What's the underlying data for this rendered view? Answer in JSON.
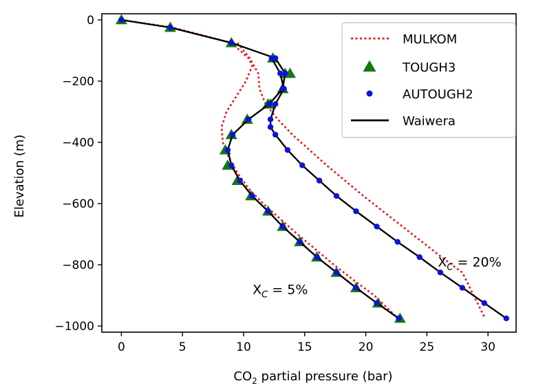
{
  "chart_data": {
    "type": "line",
    "xlabel": "CO",
    "xlabel_subscript": "2",
    "xlabel_rest": " partial pressure (bar)",
    "ylabel": "Elevation (m)",
    "xlim": [
      -1.6,
      32.3
    ],
    "ylim": [
      -1020,
      20
    ],
    "x_ticks": [
      0,
      5,
      10,
      15,
      20,
      25,
      30
    ],
    "x_tick_labels": [
      "0",
      "5",
      "10",
      "15",
      "20",
      "25",
      "30"
    ],
    "y_ticks": [
      0,
      -200,
      -400,
      -600,
      -800,
      -1000
    ],
    "y_tick_labels": [
      "0",
      "−200",
      "−400",
      "−600",
      "−800",
      "−1000"
    ],
    "grid": false,
    "legend": {
      "placement": "top-right",
      "entries": [
        {
          "name": "MULKOM",
          "style": "dotted-line",
          "color": "#e31a1c"
        },
        {
          "name": "TOUGH3",
          "style": "triangle-marker",
          "color": "#117a11"
        },
        {
          "name": "AUTOUGH2",
          "style": "dot-marker",
          "color": "#1010e0"
        },
        {
          "name": "Waiwera",
          "style": "solid-line",
          "color": "#000000"
        }
      ]
    },
    "annotations": [
      {
        "main": "X",
        "sub": "C",
        "rest": " = 5%",
        "x": 13.0,
        "y": -880
      },
      {
        "main": "X",
        "sub": "C",
        "rest": " = 20%",
        "x": 28.5,
        "y": -790
      }
    ],
    "cases": [
      {
        "case": "XC = 5%",
        "mulkom": {
          "x": [
            0,
            4.2,
            9.0,
            10.4,
            10.7,
            10.2,
            9.4,
            8.6,
            8.2,
            8.3,
            8.8,
            9.5,
            10.4,
            11.6,
            13.0,
            14.4,
            15.9,
            17.4,
            19.0,
            20.7,
            22.5
          ],
          "y": [
            0,
            -25,
            -75,
            -125,
            -150,
            -200,
            -250,
            -300,
            -350,
            -400,
            -450,
            -500,
            -550,
            -600,
            -650,
            -700,
            -750,
            -800,
            -850,
            -900,
            -970
          ]
        },
        "tough3": {
          "x": [
            0,
            4.0,
            9.0,
            12.4,
            13.4,
            13.2,
            12.0,
            10.3,
            9.0,
            8.5,
            8.7,
            9.5,
            10.6,
            12.0,
            13.2,
            14.6,
            16.0,
            17.6,
            19.2,
            21.0,
            22.8
          ],
          "y": [
            0,
            -25,
            -75,
            -125,
            -175,
            -225,
            -275,
            -325,
            -375,
            -425,
            -475,
            -525,
            -575,
            -625,
            -675,
            -725,
            -775,
            -825,
            -875,
            -925,
            -975
          ]
        },
        "autough2": {
          "x": [
            0,
            4.0,
            9.0,
            12.6,
            13.4,
            13.2,
            12.1,
            10.4,
            9.1,
            8.7,
            9.0,
            9.7,
            10.7,
            12.0,
            13.2,
            14.6,
            16.0,
            17.6,
            19.2,
            20.9,
            22.7
          ],
          "y": [
            0,
            -25,
            -75,
            -125,
            -175,
            -225,
            -275,
            -325,
            -375,
            -425,
            -475,
            -525,
            -575,
            -625,
            -675,
            -725,
            -775,
            -825,
            -875,
            -925,
            -975
          ]
        },
        "waiwera": {
          "x": [
            0,
            4.0,
            9.0,
            12.6,
            13.4,
            13.2,
            12.1,
            10.4,
            9.1,
            8.7,
            9.0,
            9.7,
            10.7,
            12.0,
            13.2,
            14.6,
            16.0,
            17.6,
            19.2,
            20.9,
            22.7
          ],
          "y": [
            0,
            -25,
            -75,
            -125,
            -175,
            -225,
            -275,
            -325,
            -375,
            -425,
            -475,
            -525,
            -575,
            -625,
            -675,
            -725,
            -775,
            -825,
            -875,
            -925,
            -975
          ]
        }
      },
      {
        "case": "XC = 20%",
        "mulkom": {
          "x": [
            9.5,
            10.5,
            11.2,
            11.3,
            11.8,
            12.8,
            14.0,
            15.4,
            16.8,
            18.3,
            19.8,
            21.4,
            23.0,
            24.6,
            26.2,
            27.9,
            29.7
          ],
          "y": [
            -75,
            -125,
            -175,
            -225,
            -275,
            -325,
            -375,
            -425,
            -475,
            -525,
            -575,
            -625,
            -675,
            -725,
            -775,
            -825,
            -970
          ]
        },
        "tough3": {
          "x": [
            13.8,
            13.2,
            12.2
          ],
          "y": [
            -175,
            -225,
            -275
          ]
        },
        "autough2": {
          "x": [
            12.3,
            13.0,
            13.3,
            12.6,
            12.2,
            12.2,
            12.6,
            13.6,
            14.8,
            16.2,
            17.6,
            19.2,
            20.9,
            22.6,
            24.4,
            26.1,
            27.9,
            29.7,
            31.5
          ],
          "y": [
            -125,
            -175,
            -225,
            -275,
            -325,
            -350,
            -375,
            -425,
            -475,
            -525,
            -575,
            -625,
            -675,
            -725,
            -775,
            -825,
            -875,
            -925,
            -975
          ]
        },
        "waiwera": {
          "x": [
            12.3,
            13.0,
            13.3,
            12.6,
            12.2,
            12.2,
            12.6,
            13.6,
            14.8,
            16.2,
            17.6,
            19.2,
            20.9,
            22.6,
            24.4,
            26.1,
            27.9,
            29.7,
            31.5
          ],
          "y": [
            -125,
            -175,
            -225,
            -275,
            -325,
            -350,
            -375,
            -425,
            -475,
            -525,
            -575,
            -625,
            -675,
            -725,
            -775,
            -825,
            -875,
            -925,
            -975
          ]
        }
      }
    ]
  }
}
